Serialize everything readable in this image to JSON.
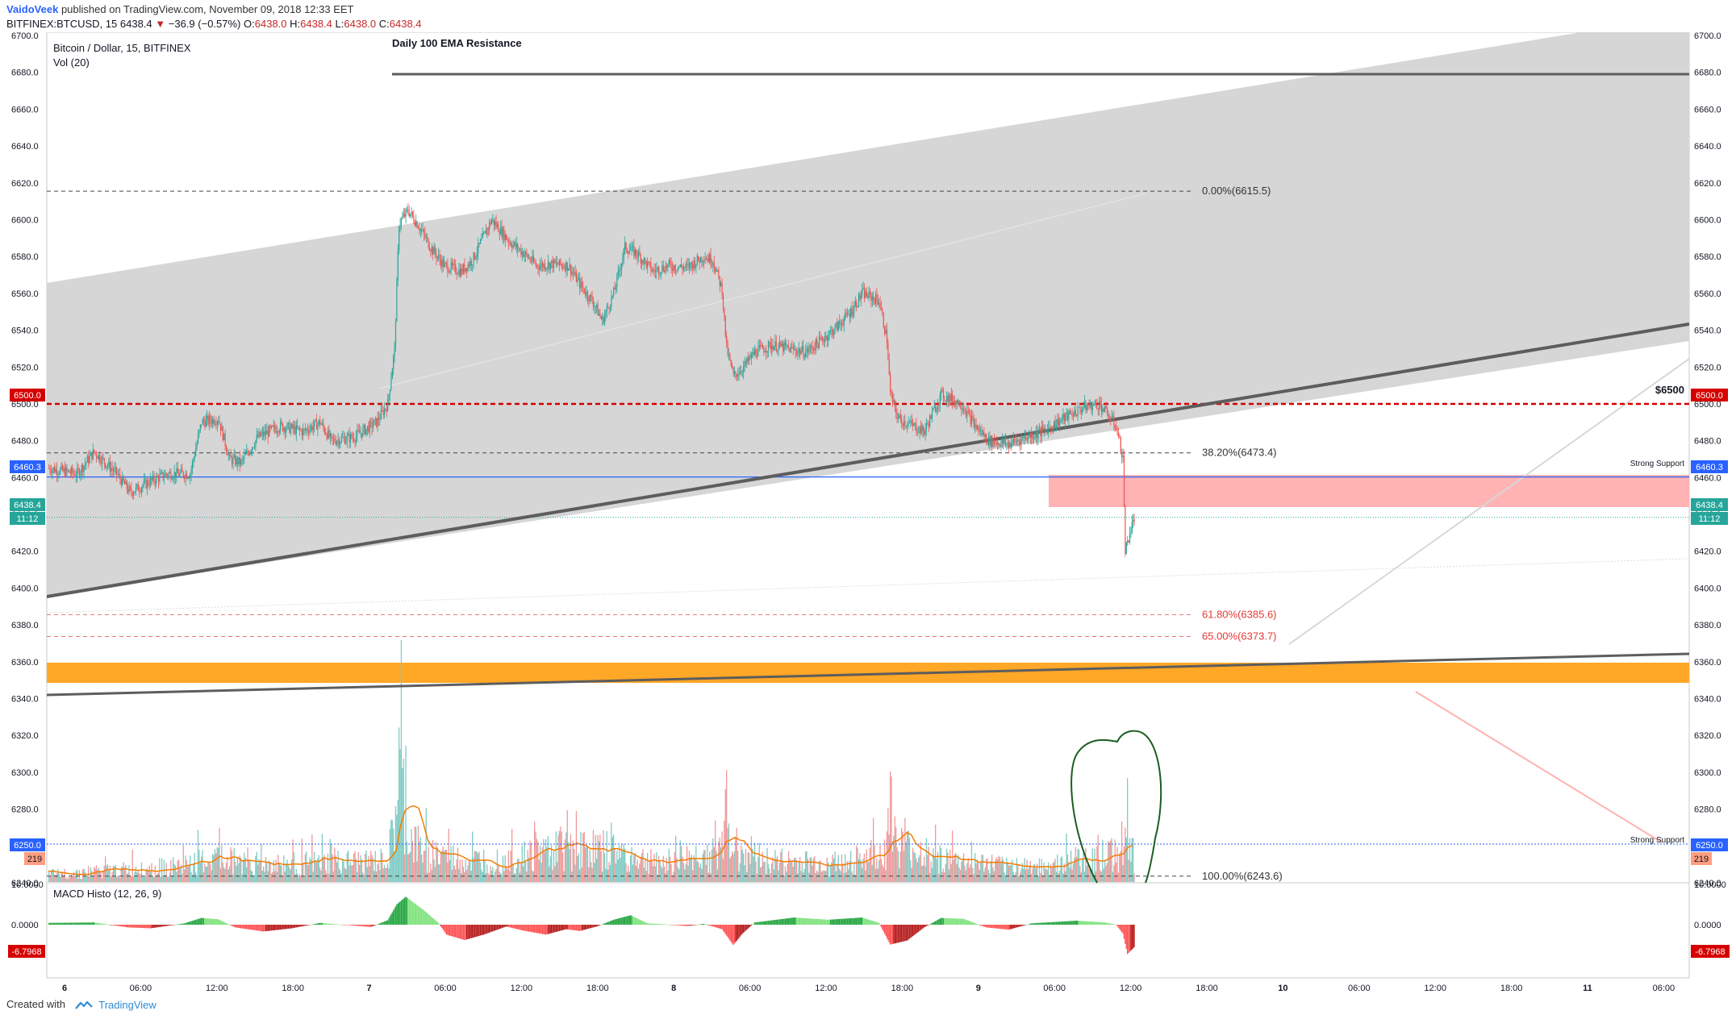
{
  "header": {
    "author": "VaidoVeek",
    "published": "published on TradingView.com, November 09, 2018 12:33 EET",
    "symbol": "BITFINEX:BTCUSD, 15",
    "last": "6438.4",
    "change_arrow": "▼",
    "change": "−36.9 (−0.57%)",
    "o_label": "O:",
    "o_value": "6438.0",
    "h_label": "H:",
    "h_value": "6438.4",
    "l_label": "L:",
    "l_value": "6438.0",
    "c_label": "C:",
    "c_value": "6438.4"
  },
  "footer": {
    "created_with": "Created with",
    "brand": "TradingView",
    "logo_icon": "tradingview-logo-icon"
  },
  "colors": {
    "up": "#26a69a",
    "down": "#ef5350",
    "macd_up": "#4caf50",
    "macd_down": "#f44336",
    "channel": "#d6d6d6",
    "trend": "#5d5d5d",
    "red_line": "#d50000",
    "blue_line": "#2962ff",
    "orange_zone": "#ffa726",
    "pink_zone": "#ffb3b3",
    "volume_ma": "#f57c00"
  },
  "chart_data": {
    "type": "candlestick",
    "title": "Bitcoin / Dollar, 15, BITFINEX",
    "volume_label": "Vol (20)",
    "annotation_title": "Daily 100 EMA Resistance",
    "y_axis": {
      "min": 6240,
      "max": 6700,
      "ticks": [
        "6700.0",
        "6680.0",
        "6660.0",
        "6640.0",
        "6620.0",
        "6600.0",
        "6580.0",
        "6560.0",
        "6540.0",
        "6520.0",
        "6500.0",
        "6480.0",
        "6460.0",
        "6440.0",
        "6420.0",
        "6400.0",
        "6380.0",
        "6360.0",
        "6340.0",
        "6320.0",
        "6300.0",
        "6280.0",
        "6260.0",
        "6240.0"
      ]
    },
    "x_axis": {
      "ticks": [
        "6",
        "06:00",
        "12:00",
        "18:00",
        "7",
        "06:00",
        "12:00",
        "18:00",
        "8",
        "06:00",
        "12:00",
        "18:00",
        "9",
        "06:00",
        "12:00",
        "18:00",
        "10",
        "06:00",
        "12:00",
        "18:00",
        "11",
        "06:00"
      ]
    },
    "price_path": [
      [
        0,
        6465
      ],
      [
        25,
        6462
      ],
      [
        40,
        6474
      ],
      [
        60,
        6462
      ],
      [
        72,
        6452
      ],
      [
        90,
        6458
      ],
      [
        105,
        6462
      ],
      [
        125,
        6462
      ],
      [
        135,
        6490
      ],
      [
        150,
        6492
      ],
      [
        160,
        6470
      ],
      [
        170,
        6468
      ],
      [
        185,
        6482
      ],
      [
        205,
        6488
      ],
      [
        225,
        6485
      ],
      [
        240,
        6490
      ],
      [
        250,
        6480
      ],
      [
        270,
        6482
      ],
      [
        290,
        6490
      ],
      [
        300,
        6500
      ],
      [
        306,
        6530
      ],
      [
        310,
        6598
      ],
      [
        318,
        6605
      ],
      [
        326,
        6598
      ],
      [
        338,
        6585
      ],
      [
        350,
        6575
      ],
      [
        365,
        6572
      ],
      [
        375,
        6578
      ],
      [
        392,
        6600
      ],
      [
        408,
        6588
      ],
      [
        420,
        6582
      ],
      [
        432,
        6575
      ],
      [
        445,
        6576
      ],
      [
        460,
        6575
      ],
      [
        470,
        6565
      ],
      [
        482,
        6555
      ],
      [
        490,
        6545
      ],
      [
        500,
        6560
      ],
      [
        510,
        6585
      ],
      [
        520,
        6582
      ],
      [
        535,
        6572
      ],
      [
        548,
        6575
      ],
      [
        565,
        6574
      ],
      [
        580,
        6580
      ],
      [
        588,
        6578
      ],
      [
        596,
        6562
      ],
      [
        600,
        6530
      ],
      [
        606,
        6515
      ],
      [
        615,
        6520
      ],
      [
        625,
        6528
      ],
      [
        640,
        6532
      ],
      [
        655,
        6530
      ],
      [
        670,
        6528
      ],
      [
        685,
        6535
      ],
      [
        698,
        6542
      ],
      [
        710,
        6550
      ],
      [
        720,
        6560
      ],
      [
        735,
        6556
      ],
      [
        742,
        6535
      ],
      [
        745,
        6505
      ],
      [
        752,
        6492
      ],
      [
        765,
        6488
      ],
      [
        775,
        6485
      ],
      [
        790,
        6505
      ],
      [
        808,
        6500
      ],
      [
        820,
        6488
      ],
      [
        832,
        6480
      ],
      [
        850,
        6478
      ],
      [
        865,
        6482
      ],
      [
        880,
        6485
      ],
      [
        898,
        6492
      ],
      [
        916,
        6498
      ],
      [
        930,
        6500
      ],
      [
        945,
        6488
      ],
      [
        951,
        6470
      ],
      [
        953,
        6420
      ],
      [
        957,
        6430
      ],
      [
        961,
        6438
      ]
    ],
    "volume_profile": [
      [
        0,
        15
      ],
      [
        110,
        30
      ],
      [
        150,
        45
      ],
      [
        200,
        35
      ],
      [
        300,
        40
      ],
      [
        306,
        110
      ],
      [
        310,
        230
      ],
      [
        318,
        90
      ],
      [
        330,
        60
      ],
      [
        370,
        40
      ],
      [
        420,
        50
      ],
      [
        450,
        70
      ],
      [
        500,
        60
      ],
      [
        540,
        35
      ],
      [
        596,
        60
      ],
      [
        600,
        160
      ],
      [
        606,
        70
      ],
      [
        640,
        40
      ],
      [
        700,
        35
      ],
      [
        742,
        60
      ],
      [
        745,
        190
      ],
      [
        750,
        70
      ],
      [
        800,
        40
      ],
      [
        850,
        30
      ],
      [
        900,
        35
      ],
      [
        950,
        60
      ],
      [
        953,
        160
      ],
      [
        961,
        40
      ]
    ],
    "macd_profile": [
      [
        0,
        0.4
      ],
      [
        40,
        0.5
      ],
      [
        70,
        -0.6
      ],
      [
        90,
        -0.8
      ],
      [
        120,
        0.3
      ],
      [
        135,
        1.5
      ],
      [
        150,
        1.2
      ],
      [
        165,
        -0.6
      ],
      [
        190,
        -1.5
      ],
      [
        215,
        -0.8
      ],
      [
        240,
        0.4
      ],
      [
        270,
        -0.2
      ],
      [
        285,
        -0.5
      ],
      [
        300,
        1.0
      ],
      [
        308,
        4.5
      ],
      [
        316,
        6.2
      ],
      [
        332,
        3.2
      ],
      [
        345,
        0.4
      ],
      [
        352,
        -2.2
      ],
      [
        368,
        -3.4
      ],
      [
        385,
        -2.2
      ],
      [
        405,
        -0.4
      ],
      [
        420,
        -1.3
      ],
      [
        440,
        -2.2
      ],
      [
        458,
        -1.0
      ],
      [
        470,
        -1.4
      ],
      [
        485,
        -0.4
      ],
      [
        500,
        1.1
      ],
      [
        515,
        2.1
      ],
      [
        530,
        0.3
      ],
      [
        545,
        0.1
      ],
      [
        565,
        -0.3
      ],
      [
        580,
        0.2
      ],
      [
        596,
        -1.0
      ],
      [
        606,
        -4.5
      ],
      [
        614,
        -2.0
      ],
      [
        625,
        0.5
      ],
      [
        660,
        1.6
      ],
      [
        690,
        1.1
      ],
      [
        720,
        1.6
      ],
      [
        735,
        0.4
      ],
      [
        745,
        -4.4
      ],
      [
        760,
        -3.5
      ],
      [
        775,
        -0.6
      ],
      [
        790,
        1.5
      ],
      [
        810,
        1.3
      ],
      [
        830,
        -0.6
      ],
      [
        850,
        -1.1
      ],
      [
        870,
        0.3
      ],
      [
        910,
        0.9
      ],
      [
        935,
        0.5
      ],
      [
        945,
        0.0
      ],
      [
        951,
        -2.0
      ],
      [
        955,
        -6.5
      ],
      [
        961,
        -5.0
      ]
    ],
    "macd_label": "MACD Histo (12, 26, 9)",
    "macd_axis": {
      "top": "10.0000",
      "zero": "0.0000",
      "bottom": "-6.7968"
    },
    "fib_levels": [
      {
        "label": "0.00%(6615.5)",
        "value": 6615.5
      },
      {
        "label": "38.20%(6473.4)",
        "value": 6473.4
      },
      {
        "label": "61.80%(6385.6)",
        "value": 6385.6
      },
      {
        "label": "65.00%(6373.7)",
        "value": 6373.7
      },
      {
        "label": "100.00%(6243.6)",
        "value": 6243.6
      }
    ],
    "levels": {
      "resistance_level": 6680,
      "red_line_value": 6500,
      "red_line_tag": "6500.0",
      "red_line_label": "$6500",
      "blue_line_value": 6460.3,
      "blue_line_tag": "6460.3",
      "blue_line_label": "Strong Support",
      "last_price_tag": "6438.4",
      "countdown": "11:12",
      "low_support_tag": "6250.0",
      "low_support_label": "Strong Support",
      "volume_tag": "219"
    }
  }
}
